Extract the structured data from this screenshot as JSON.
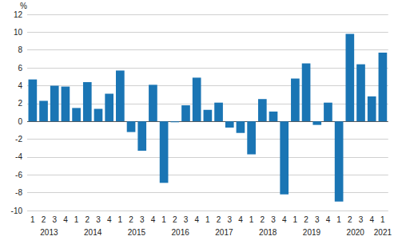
{
  "chart_data": {
    "type": "bar",
    "ylabel": "%",
    "categories": [
      "1",
      "2",
      "3",
      "4",
      "1",
      "2",
      "3",
      "4",
      "1",
      "2",
      "3",
      "4",
      "1",
      "2",
      "3",
      "4",
      "1",
      "2",
      "3",
      "4",
      "1",
      "2",
      "3",
      "4",
      "1",
      "2",
      "3",
      "4",
      "1",
      "2",
      "3",
      "4",
      "1"
    ],
    "year_labels": [
      null,
      "2013",
      null,
      null,
      null,
      "2014",
      null,
      null,
      null,
      "2015",
      null,
      null,
      null,
      "2016",
      null,
      null,
      null,
      "2017",
      null,
      null,
      null,
      "2018",
      null,
      null,
      null,
      "2019",
      null,
      null,
      null,
      "2020",
      null,
      null,
      "2021"
    ],
    "values": [
      4.7,
      2.3,
      4.0,
      3.9,
      1.5,
      4.4,
      1.4,
      3.1,
      5.7,
      -1.2,
      -3.3,
      4.1,
      -6.9,
      -0.1,
      1.8,
      4.9,
      1.3,
      2.1,
      -0.7,
      -1.3,
      -3.7,
      2.5,
      1.1,
      -8.2,
      4.8,
      6.5,
      -0.4,
      2.1,
      -9.0,
      9.8,
      6.4,
      2.8,
      7.7
    ],
    "color": "#1a75b4",
    "ylim": [
      -10,
      12
    ],
    "yticks": [
      -10,
      -8,
      -6,
      -4,
      -2,
      0,
      2,
      4,
      6,
      8,
      10,
      12
    ],
    "grid": true
  }
}
